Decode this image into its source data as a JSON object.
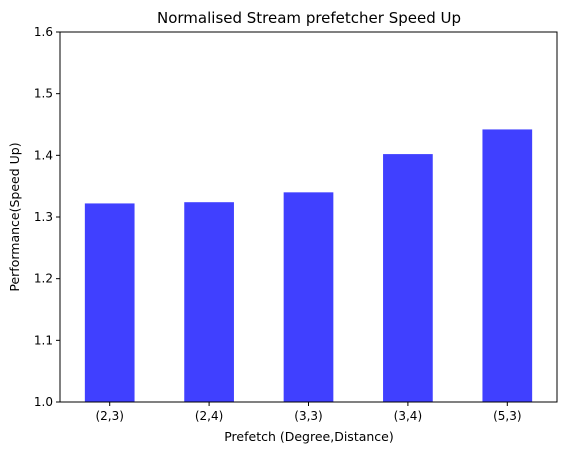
{
  "chart_data": {
    "type": "bar",
    "title": "Normalised Stream prefetcher Speed Up",
    "xlabel": "Prefetch (Degree,Distance)",
    "ylabel": "Performance(Speed Up)",
    "categories": [
      "(2,3)",
      "(2,4)",
      "(3,3)",
      "(3,4)",
      "(5,3)"
    ],
    "values": [
      1.322,
      1.324,
      1.34,
      1.402,
      1.442
    ],
    "ylim": [
      1.0,
      1.6
    ],
    "yticks": [
      "1.0",
      "1.1",
      "1.2",
      "1.3",
      "1.4",
      "1.5",
      "1.6"
    ],
    "bar_color": "#4040ff",
    "grid": false,
    "legend": "none"
  }
}
